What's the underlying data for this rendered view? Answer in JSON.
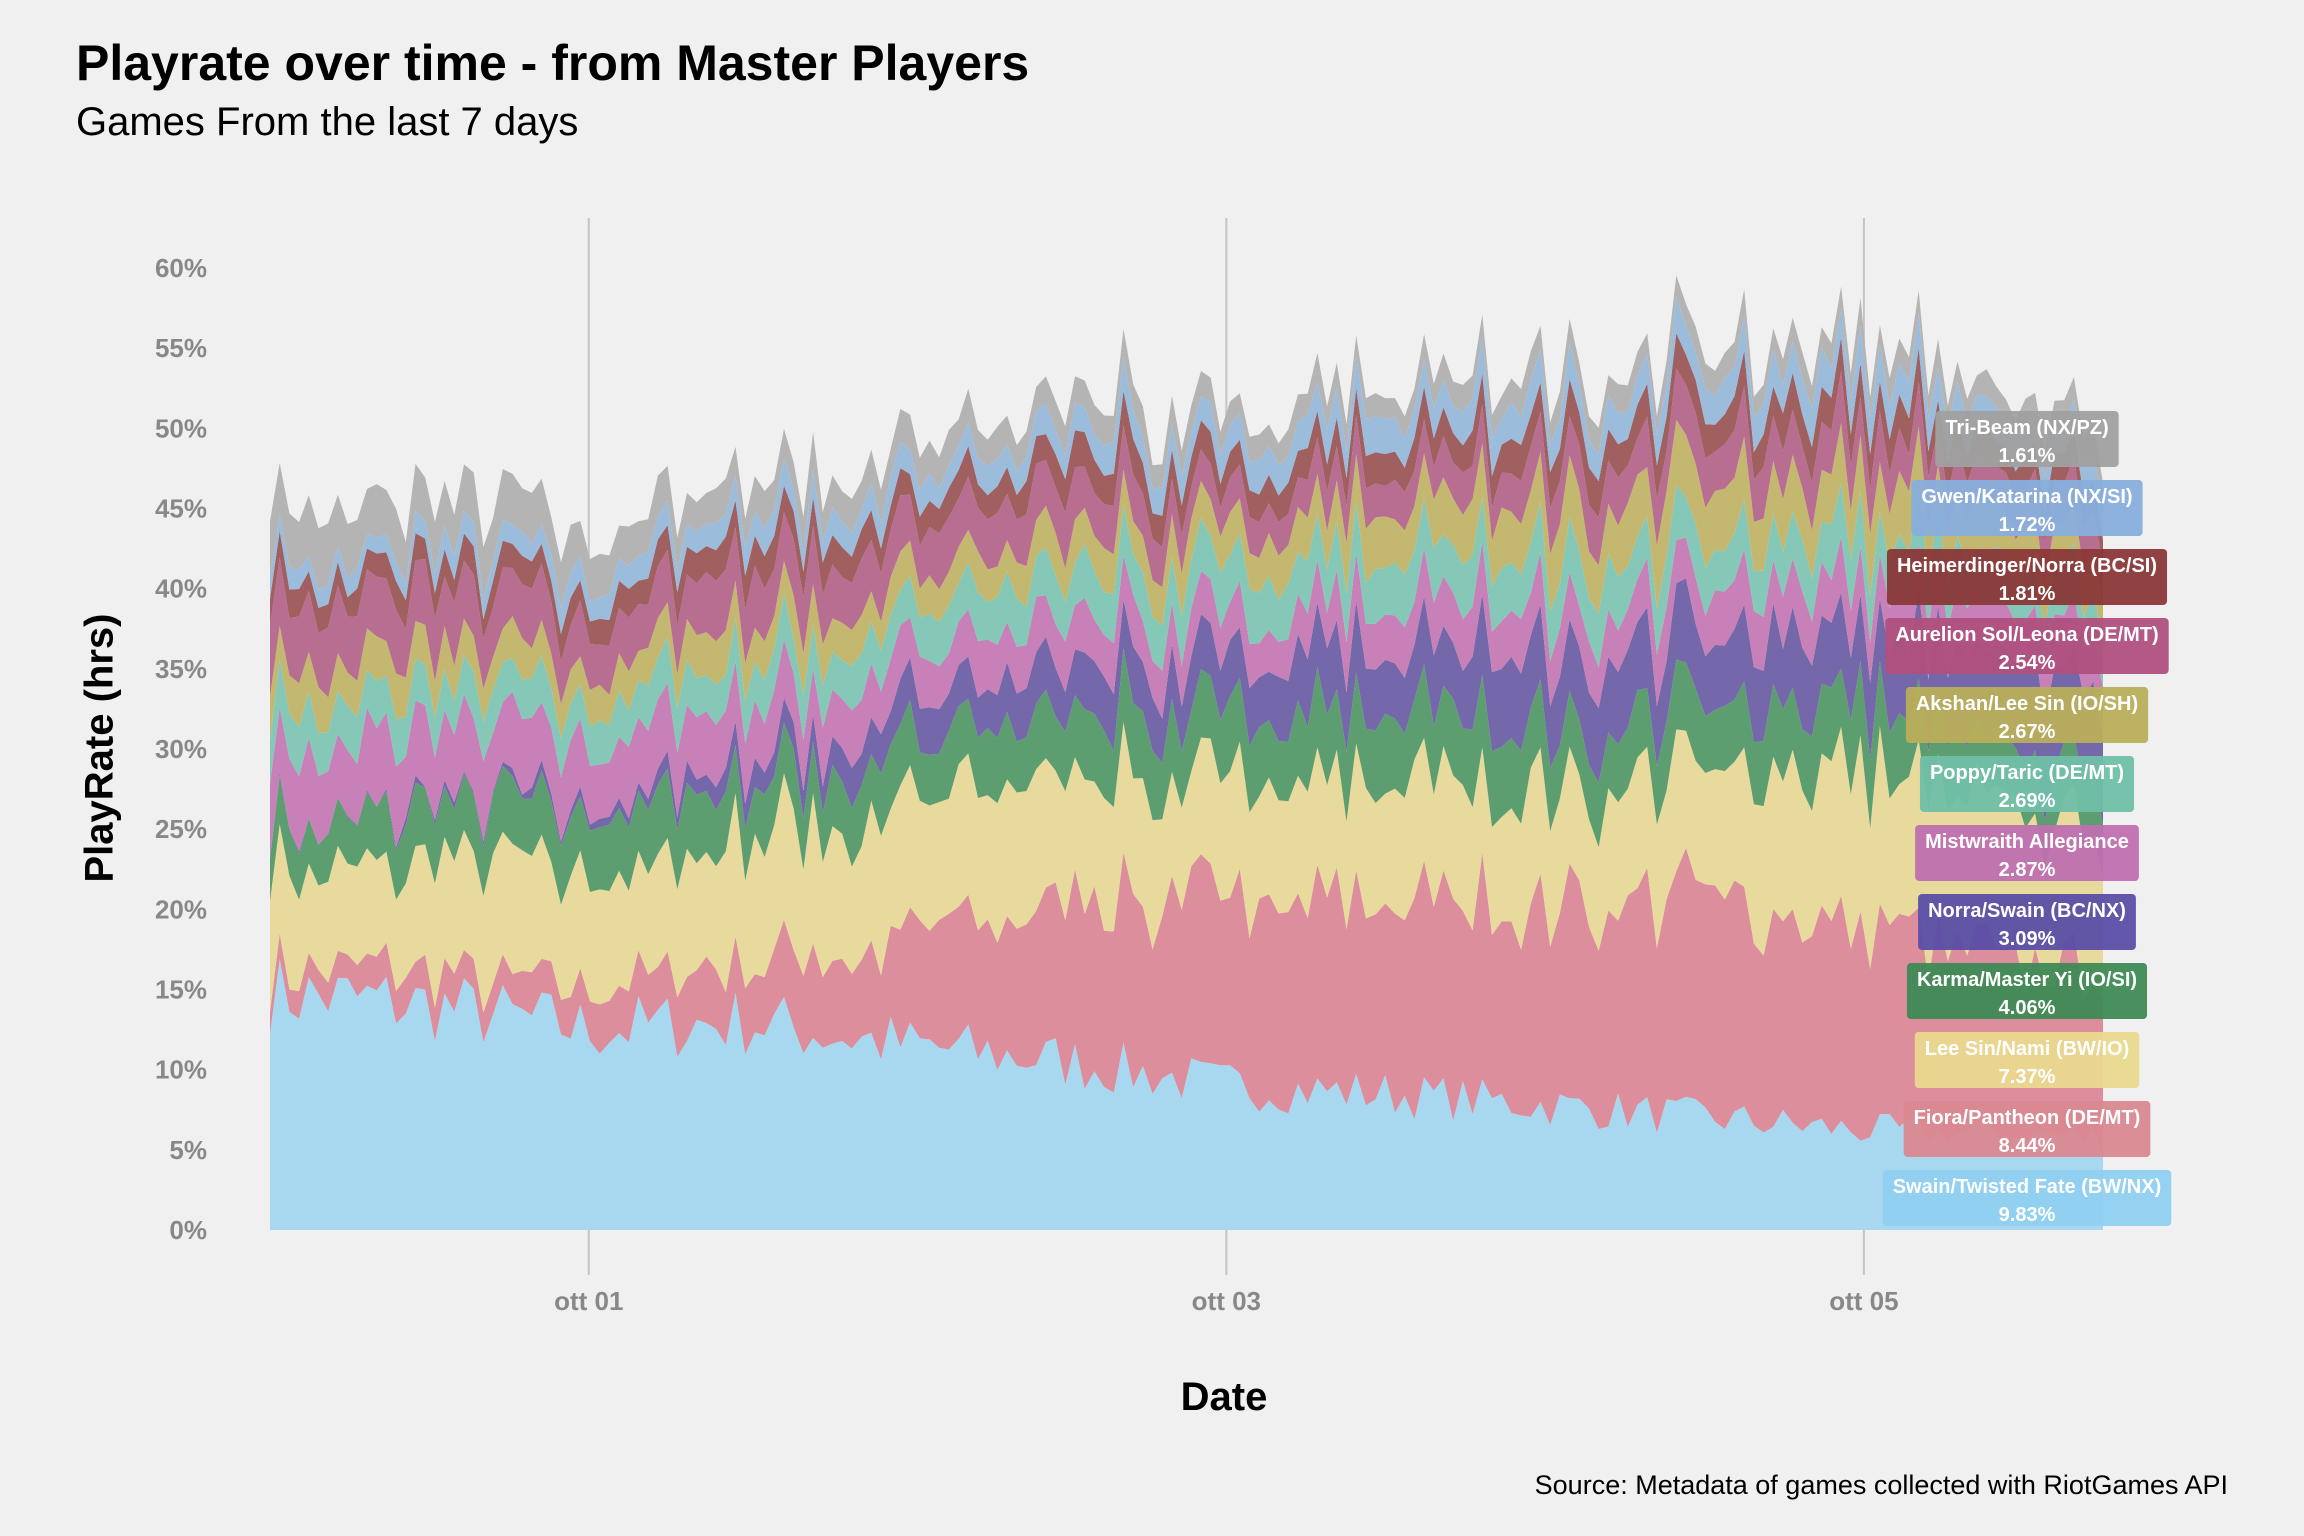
{
  "title": "Playrate over time - from Master Players",
  "subtitle": "Games From the last 7 days",
  "caption": "Source: Metadata of games collected with RiotGames API",
  "chart_data": {
    "type": "area",
    "stacked": true,
    "xlabel": "Date",
    "ylabel": "PlayRate (hrs)",
    "x_start": "2021-09-30T00:00",
    "x_end": "2021-10-05T18:00",
    "x_ticks": [
      {
        "label": "ott 01",
        "date": "2021-10-01T00:00"
      },
      {
        "label": "ott 03",
        "date": "2021-10-03T00:00"
      },
      {
        "label": "ott 05",
        "date": "2021-10-05T00:00"
      }
    ],
    "y_ticks": [
      "0%",
      "5%",
      "10%",
      "15%",
      "20%",
      "25%",
      "30%",
      "35%",
      "40%",
      "45%",
      "50%",
      "55%",
      "60%"
    ],
    "ylim": [
      0,
      60
    ],
    "grid": "vertical lines at x ticks",
    "legend": "direct labels at right end",
    "x": [
      "2021-09-30T00:00",
      "2021-09-30T12:00",
      "2021-10-01T00:00",
      "2021-10-01T12:00",
      "2021-10-02T00:00",
      "2021-10-02T12:00",
      "2021-10-03T00:00",
      "2021-10-03T12:00",
      "2021-10-04T00:00",
      "2021-10-04T12:00",
      "2021-10-05T00:00",
      "2021-10-05T12:00",
      "2021-10-05T18:00"
    ],
    "series": [
      {
        "name": "Swain/Twisted Fate (BW/NX)",
        "label": "9.83%",
        "color": "#a8d8f0",
        "label_color": "#8fd0f0",
        "values": [
          14.8,
          14.0,
          12.5,
          13.0,
          11.5,
          10.5,
          9.0,
          8.5,
          7.8,
          7.0,
          6.2,
          6.0,
          5.8
        ]
      },
      {
        "name": "Fiora/Pantheon (DE/MT)",
        "label": "8.44%",
        "color": "#dc8e9c",
        "label_color": "#d98890",
        "values": [
          1.5,
          2.0,
          2.5,
          4.0,
          6.5,
          9.5,
          11.5,
          12.0,
          12.5,
          13.5,
          12.5,
          10.5,
          10.5
        ]
      },
      {
        "name": "Lee Sin/Nami (BW/IO)",
        "label": "7.37%",
        "color": "#e8da9c",
        "label_color": "#e9d98e",
        "values": [
          6.0,
          7.0,
          7.0,
          8.0,
          8.0,
          7.5,
          7.0,
          7.5,
          7.5,
          8.0,
          9.5,
          9.0,
          8.8
        ]
      },
      {
        "name": "Karma/Master Yi (IO/SI)",
        "label": "4.06%",
        "color": "#5d9e70",
        "label_color": "#3e8a55",
        "values": [
          2.5,
          3.5,
          4.0,
          3.5,
          3.5,
          4.0,
          4.0,
          4.5,
          4.0,
          4.0,
          4.0,
          3.5,
          3.0
        ]
      },
      {
        "name": "Norra/Swain (BC/NX)",
        "label": "3.09%",
        "color": "#7468aa",
        "label_color": "#5a4ea6",
        "values": [
          0.0,
          0.3,
          0.5,
          1.5,
          2.5,
          3.0,
          3.5,
          4.0,
          4.5,
          4.5,
          4.5,
          5.5,
          6.0
        ]
      },
      {
        "name": "Mistwraith Allegiance",
        "label": "2.87%",
        "color": "#c880b8",
        "label_color": "#bf70b0",
        "values": [
          4.5,
          4.5,
          4.0,
          3.5,
          3.0,
          3.0,
          2.5,
          2.8,
          3.0,
          3.0,
          3.0,
          3.0,
          3.0
        ]
      },
      {
        "name": "Poppy/Taric (DE/MT)",
        "label": "2.69%",
        "color": "#86c8b8",
        "label_color": "#70bfa8",
        "values": [
          3.0,
          2.5,
          2.5,
          2.5,
          2.5,
          3.0,
          3.0,
          3.0,
          3.0,
          3.0,
          3.0,
          2.8,
          2.7
        ]
      },
      {
        "name": "Akshan/Lee Sin (IO/SH)",
        "label": "2.67%",
        "color": "#c4b870",
        "label_color": "#b8ae5a",
        "values": [
          2.5,
          2.5,
          2.0,
          2.5,
          2.0,
          2.5,
          2.5,
          3.0,
          3.5,
          3.5,
          3.5,
          3.0,
          2.8
        ]
      },
      {
        "name": "Aurelion Sol/Leona (DE/MT)",
        "label": "2.54%",
        "color": "#b86e90",
        "label_color": "#b0507e",
        "values": [
          4.0,
          3.5,
          3.0,
          3.5,
          3.0,
          3.0,
          2.0,
          2.2,
          2.5,
          2.8,
          2.8,
          2.5,
          2.5
        ]
      },
      {
        "name": "Heimerdinger/Norra (BC/SI)",
        "label": "1.81%",
        "color": "#a06060",
        "label_color": "#8a3838",
        "values": [
          1.5,
          1.5,
          1.5,
          2.0,
          1.5,
          2.0,
          1.8,
          1.8,
          2.0,
          2.0,
          2.0,
          1.8,
          1.8
        ]
      },
      {
        "name": "Gwen/Katarina (NX/SI)",
        "label": "1.72%",
        "color": "#9cbcdc",
        "label_color": "#88aedc",
        "values": [
          1.2,
          1.2,
          1.5,
          1.5,
          1.5,
          1.8,
          1.8,
          2.0,
          2.0,
          2.0,
          2.2,
          1.8,
          1.7
        ]
      },
      {
        "name": "Tri-Beam (NX/PZ)",
        "label": "1.61%",
        "color": "#b4b4b4",
        "label_color": "#a0a0a0",
        "values": [
          3.5,
          3.0,
          2.5,
          2.0,
          2.0,
          1.8,
          1.5,
          1.5,
          1.5,
          1.5,
          1.5,
          1.5,
          1.6
        ]
      }
    ]
  }
}
